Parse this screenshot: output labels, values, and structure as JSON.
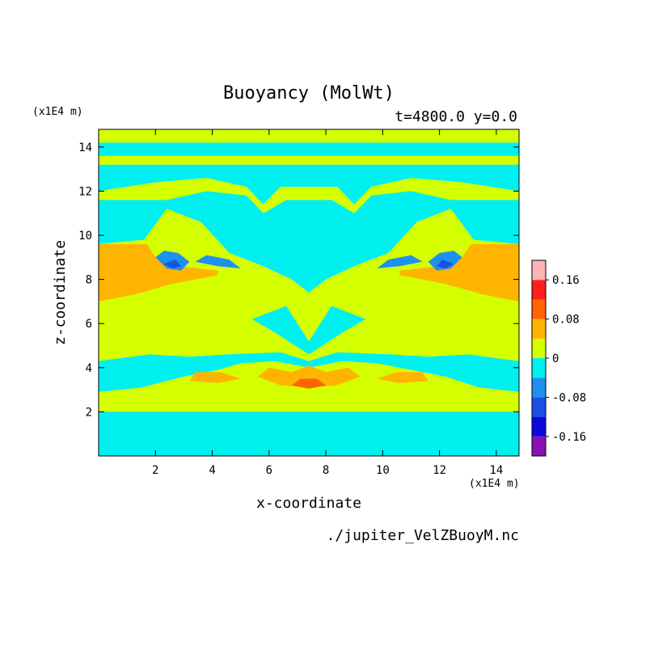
{
  "chart_data": {
    "type": "heatmap",
    "title": "Buoyancy (MolWt)",
    "subtitle": "t=4800.0 y=0.0",
    "xlabel": "x-coordinate",
    "ylabel": "z-coordinate",
    "x_unit": "(x1E4 m)",
    "y_unit": "(x1E4 m)",
    "filename": "./jupiter_VelZBuoyM.nc",
    "xlim": [
      0,
      14.8
    ],
    "ylim": [
      0,
      14.8
    ],
    "x_ticks": [
      2,
      4,
      6,
      8,
      10,
      12,
      14
    ],
    "y_ticks": [
      2,
      4,
      6,
      8,
      10,
      12,
      14
    ],
    "colorbar": {
      "levels": [
        -0.2,
        -0.16,
        -0.12,
        -0.08,
        -0.04,
        0,
        0.04,
        0.08,
        0.12,
        0.16,
        0.2
      ],
      "colors": [
        "#8a12b2",
        "#0a0adc",
        "#1a50e6",
        "#1e90f0",
        "#00f0f0",
        "#d4ff00",
        "#ffb400",
        "#ff6400",
        "#ff1e1e",
        "#ffb4b4"
      ],
      "tick_values": [
        -0.16,
        -0.08,
        0,
        0.08,
        0.16
      ],
      "tick_labels": [
        "-0.16",
        "-0.08",
        "0",
        "0.08",
        "0.16"
      ]
    },
    "regions": [
      {
        "level": 0.02,
        "points": [
          [
            0,
            0
          ],
          [
            14.8,
            0
          ],
          [
            14.8,
            14.8
          ],
          [
            0,
            14.8
          ]
        ]
      },
      {
        "level": -0.02,
        "points": [
          [
            0,
            0
          ],
          [
            14.8,
            0
          ],
          [
            14.8,
            2.0
          ],
          [
            0,
            2.0
          ]
        ]
      },
      {
        "level": -0.02,
        "points": [
          [
            0,
            2.9
          ],
          [
            1.5,
            3.1
          ],
          [
            3.0,
            3.6
          ],
          [
            4.2,
            3.9
          ],
          [
            5.0,
            4.2
          ],
          [
            6.2,
            4.3
          ],
          [
            7.4,
            4.0
          ],
          [
            8.6,
            4.3
          ],
          [
            9.8,
            4.2
          ],
          [
            11.0,
            3.9
          ],
          [
            12.2,
            3.6
          ],
          [
            13.4,
            3.1
          ],
          [
            14.8,
            2.9
          ],
          [
            14.8,
            4.3
          ],
          [
            13.0,
            4.6
          ],
          [
            11.6,
            4.5
          ],
          [
            10.3,
            4.6
          ],
          [
            8.4,
            4.7
          ],
          [
            7.4,
            4.3
          ],
          [
            6.4,
            4.7
          ],
          [
            4.5,
            4.6
          ],
          [
            3.2,
            4.5
          ],
          [
            1.8,
            4.6
          ],
          [
            0,
            4.3
          ]
        ]
      },
      {
        "level": -0.02,
        "points": [
          [
            0,
            9.6
          ],
          [
            1.6,
            9.8
          ],
          [
            2.4,
            11.2
          ],
          [
            3.6,
            10.6
          ],
          [
            4.6,
            9.2
          ],
          [
            5.8,
            8.6
          ],
          [
            6.8,
            8.0
          ],
          [
            7.4,
            7.4
          ],
          [
            8.0,
            8.0
          ],
          [
            9.0,
            8.6
          ],
          [
            10.2,
            9.2
          ],
          [
            11.2,
            10.6
          ],
          [
            12.4,
            11.2
          ],
          [
            13.2,
            9.8
          ],
          [
            14.8,
            9.6
          ],
          [
            14.8,
            13.2
          ],
          [
            0,
            13.2
          ]
        ]
      },
      {
        "level": -0.02,
        "points": [
          [
            5.4,
            6.2
          ],
          [
            6.6,
            6.8
          ],
          [
            7.4,
            5.2
          ],
          [
            8.2,
            6.8
          ],
          [
            9.4,
            6.2
          ],
          [
            8.6,
            5.6
          ],
          [
            7.4,
            4.6
          ],
          [
            6.2,
            5.6
          ]
        ]
      },
      {
        "level": -0.02,
        "points": [
          [
            0,
            13.6
          ],
          [
            14.8,
            13.6
          ],
          [
            14.8,
            14.2
          ],
          [
            0,
            14.2
          ]
        ]
      },
      {
        "level": 0.02,
        "points": [
          [
            0,
            12.0
          ],
          [
            2.0,
            12.4
          ],
          [
            3.8,
            12.6
          ],
          [
            5.2,
            12.2
          ],
          [
            5.8,
            11.4
          ],
          [
            6.4,
            12.2
          ],
          [
            8.4,
            12.2
          ],
          [
            9.0,
            11.4
          ],
          [
            9.6,
            12.2
          ],
          [
            11.0,
            12.6
          ],
          [
            12.8,
            12.4
          ],
          [
            14.8,
            12.0
          ],
          [
            14.8,
            11.6
          ],
          [
            13.2,
            11.6
          ],
          [
            12.4,
            11.6
          ],
          [
            11.0,
            12.0
          ],
          [
            9.6,
            11.8
          ],
          [
            9.0,
            11.0
          ],
          [
            8.2,
            11.6
          ],
          [
            6.6,
            11.6
          ],
          [
            5.8,
            11.0
          ],
          [
            5.2,
            11.8
          ],
          [
            3.8,
            12.0
          ],
          [
            2.4,
            11.6
          ],
          [
            1.6,
            11.6
          ],
          [
            0,
            11.6
          ]
        ]
      },
      {
        "level": 0.06,
        "points": [
          [
            0,
            7.0
          ],
          [
            1.2,
            7.3
          ],
          [
            2.6,
            7.8
          ],
          [
            4.2,
            8.2
          ],
          [
            4.2,
            8.4
          ],
          [
            2.8,
            8.6
          ],
          [
            2.0,
            9.0
          ],
          [
            1.7,
            9.6
          ],
          [
            0,
            9.6
          ]
        ]
      },
      {
        "level": 0.06,
        "points": [
          [
            14.8,
            7.0
          ],
          [
            13.6,
            7.3
          ],
          [
            12.2,
            7.8
          ],
          [
            10.6,
            8.2
          ],
          [
            10.6,
            8.4
          ],
          [
            12.0,
            8.6
          ],
          [
            12.8,
            9.0
          ],
          [
            13.1,
            9.6
          ],
          [
            14.8,
            9.6
          ]
        ]
      },
      {
        "level": 0.06,
        "points": [
          [
            5.6,
            3.6
          ],
          [
            6.4,
            3.2
          ],
          [
            7.4,
            3.1
          ],
          [
            8.4,
            3.2
          ],
          [
            9.2,
            3.6
          ],
          [
            8.8,
            4.0
          ],
          [
            8.0,
            3.8
          ],
          [
            7.4,
            4.1
          ],
          [
            6.8,
            3.8
          ],
          [
            6.0,
            4.0
          ]
        ]
      },
      {
        "level": 0.06,
        "points": [
          [
            3.2,
            3.4
          ],
          [
            4.2,
            3.3
          ],
          [
            5.0,
            3.5
          ],
          [
            4.3,
            3.8
          ],
          [
            3.4,
            3.8
          ]
        ]
      },
      {
        "level": 0.06,
        "points": [
          [
            11.6,
            3.4
          ],
          [
            10.6,
            3.3
          ],
          [
            9.8,
            3.5
          ],
          [
            10.5,
            3.8
          ],
          [
            11.4,
            3.8
          ]
        ]
      },
      {
        "level": 0.1,
        "points": [
          [
            6.8,
            3.2
          ],
          [
            7.4,
            3.05
          ],
          [
            8.0,
            3.2
          ],
          [
            7.7,
            3.5
          ],
          [
            7.1,
            3.5
          ]
        ]
      },
      {
        "level": -0.06,
        "points": [
          [
            2.0,
            9.0
          ],
          [
            2.4,
            8.5
          ],
          [
            2.9,
            8.4
          ],
          [
            3.2,
            8.8
          ],
          [
            2.8,
            9.2
          ],
          [
            2.3,
            9.3
          ]
        ]
      },
      {
        "level": -0.06,
        "points": [
          [
            3.4,
            8.8
          ],
          [
            4.2,
            8.6
          ],
          [
            5.0,
            8.5
          ],
          [
            4.6,
            8.9
          ],
          [
            3.8,
            9.1
          ]
        ]
      },
      {
        "level": -0.06,
        "points": [
          [
            12.8,
            9.0
          ],
          [
            12.4,
            8.5
          ],
          [
            11.9,
            8.4
          ],
          [
            11.6,
            8.8
          ],
          [
            12.0,
            9.2
          ],
          [
            12.5,
            9.3
          ]
        ]
      },
      {
        "level": -0.06,
        "points": [
          [
            11.4,
            8.8
          ],
          [
            10.6,
            8.6
          ],
          [
            9.8,
            8.5
          ],
          [
            10.2,
            8.9
          ],
          [
            11.0,
            9.1
          ]
        ]
      },
      {
        "level": -0.1,
        "points": [
          [
            2.3,
            8.7
          ],
          [
            2.6,
            8.5
          ],
          [
            2.9,
            8.6
          ],
          [
            2.7,
            8.9
          ]
        ]
      },
      {
        "level": -0.1,
        "points": [
          [
            12.5,
            8.7
          ],
          [
            12.2,
            8.5
          ],
          [
            11.9,
            8.6
          ],
          [
            12.1,
            8.9
          ]
        ]
      }
    ]
  }
}
